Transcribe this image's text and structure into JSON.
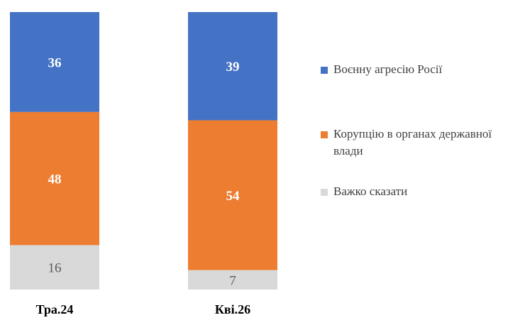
{
  "chart_data": {
    "type": "bar",
    "stacked": true,
    "percent_stacked": true,
    "categories": [
      "Тра.24",
      "Кві.26"
    ],
    "series": [
      {
        "name": "Воєнну агресію Росії",
        "color": "#4472C4",
        "values": [
          36,
          39
        ],
        "label_color": "#ffffff",
        "label_bold": true
      },
      {
        "name": "Корупцію в органах державної влади",
        "color": "#ED7D31",
        "values": [
          48,
          54
        ],
        "label_color": "#ffffff",
        "label_bold": true
      },
      {
        "name": "Важко сказати",
        "color": "#D9D9D9",
        "values": [
          16,
          7
        ],
        "label_color": "#595959",
        "label_bold": false
      }
    ],
    "ylim": [
      0,
      100
    ],
    "grid": false,
    "legend_position": "right"
  }
}
